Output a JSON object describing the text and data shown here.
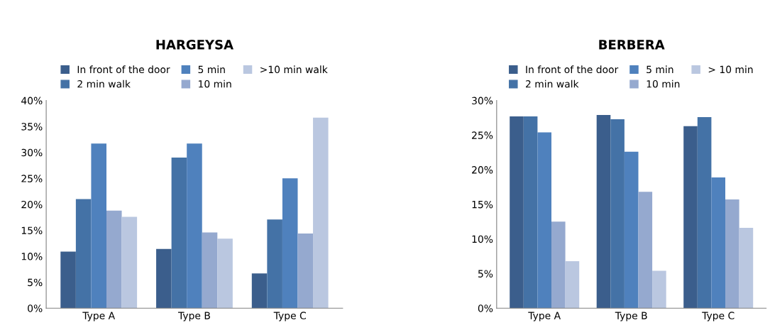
{
  "chart_data": [
    {
      "type": "bar",
      "title": "HARGEYSA",
      "categories": [
        "Type A",
        "Type B",
        "Type C"
      ],
      "ylim": [
        0,
        40
      ],
      "yticks": [
        {
          "value": 0,
          "label": "0%"
        },
        {
          "value": 5,
          "label": "5%"
        },
        {
          "value": 10,
          "label": "10%"
        },
        {
          "value": 15,
          "label": "15%"
        },
        {
          "value": 20,
          "label": "20%"
        },
        {
          "value": 25,
          "label": "25%"
        },
        {
          "value": 30,
          "label": "30%"
        },
        {
          "value": 35,
          "label": "35%"
        },
        {
          "value": 40,
          "label": "40%"
        }
      ],
      "legend": "top",
      "grid": false,
      "series": [
        {
          "name": "In front of the door",
          "color": "#3b5e8c",
          "values": [
            10.9,
            11.4,
            6.7
          ]
        },
        {
          "name": "2 min walk",
          "color": "#4472a6",
          "values": [
            21.0,
            29.0,
            17.1
          ]
        },
        {
          "name": "5 min",
          "color": "#4f81bd",
          "values": [
            31.7,
            31.7,
            25.0
          ]
        },
        {
          "name": "10 min",
          "color": "#95a9cf",
          "values": [
            18.8,
            14.6,
            14.4
          ]
        },
        {
          "name": ">10 min walk",
          "color": "#bac7e0",
          "values": [
            17.6,
            13.4,
            36.7
          ]
        }
      ]
    },
    {
      "type": "bar",
      "title": "BERBERA",
      "categories": [
        "Type A",
        "Type B",
        "Type C"
      ],
      "ylim": [
        0,
        30
      ],
      "yticks": [
        {
          "value": 0,
          "label": "0%"
        },
        {
          "value": 5,
          "label": "5%"
        },
        {
          "value": 10,
          "label": "10%"
        },
        {
          "value": 15,
          "label": "15%"
        },
        {
          "value": 20,
          "label": "20%"
        },
        {
          "value": 25,
          "label": "25%"
        },
        {
          "value": 30,
          "label": "30%"
        }
      ],
      "legend": "top",
      "grid": false,
      "series": [
        {
          "name": "In front of the door",
          "color": "#3b5e8c",
          "values": [
            27.7,
            27.9,
            26.3
          ]
        },
        {
          "name": "2 min walk",
          "color": "#4472a6",
          "values": [
            27.7,
            27.3,
            27.6
          ]
        },
        {
          "name": "5 min",
          "color": "#4f81bd",
          "values": [
            25.4,
            22.6,
            18.9
          ]
        },
        {
          "name": "10 min",
          "color": "#95a9cf",
          "values": [
            12.5,
            16.8,
            15.7
          ]
        },
        {
          "name": "> 10 min",
          "color": "#bac7e0",
          "values": [
            6.8,
            5.4,
            11.6
          ]
        }
      ]
    }
  ]
}
